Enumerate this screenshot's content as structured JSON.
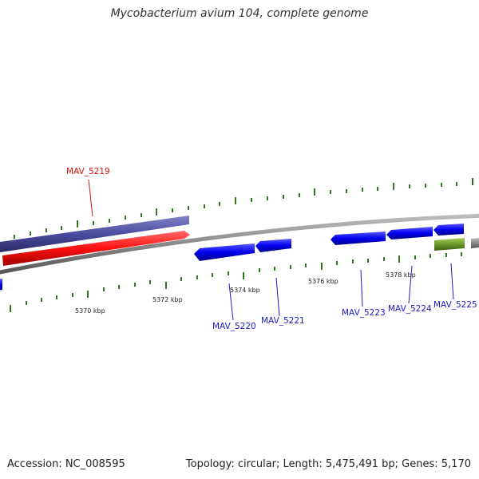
{
  "title": "Mycobacterium avium 104, complete genome",
  "accession_text": "Accession: NC_008595",
  "summary_text": "Topology: circular; Length: 5,475,491 bp; Genes: 5,170",
  "colors": {
    "backbone": "#8a8a8a",
    "tick": "#2f7a1e",
    "gene_forward": "#0000ee",
    "gene_highlight": "#ff1111",
    "gene_other": "#4b4ba0",
    "gene_green": "#6a9a2a",
    "label_blue": "#1a1acc",
    "label_red": "#dd1111"
  },
  "scale_labels": [
    "5370 kbp",
    "5372 kbp",
    "5374 kbp",
    "5376 kbp",
    "5378 kbp"
  ],
  "gene_labels": [
    "MAV_5219",
    "MAV_5220",
    "MAV_5221",
    "MAV_5223",
    "MAV_5224",
    "MAV_5225"
  ]
}
